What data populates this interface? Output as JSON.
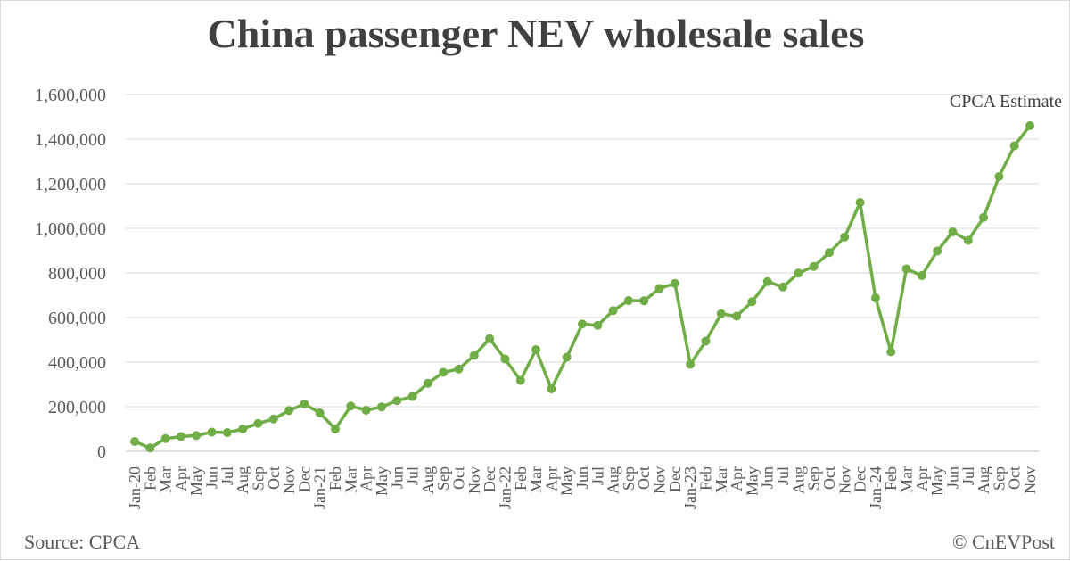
{
  "chart_data": {
    "type": "line",
    "title": "China passenger NEV wholesale sales",
    "xlabel": "",
    "ylabel": "",
    "ylim": [
      0,
      1600000
    ],
    "yticks": [
      0,
      200000,
      400000,
      600000,
      800000,
      1000000,
      1200000,
      1400000,
      1600000
    ],
    "ytick_labels": [
      "0",
      "200,000",
      "400,000",
      "600,000",
      "800,000",
      "1,000,000",
      "1,200,000",
      "1,400,000",
      "1,600,000"
    ],
    "grid": true,
    "line_color": "#70ad47",
    "categories": [
      "Jan-20",
      "Feb",
      "Mar",
      "Apr",
      "May",
      "Jun",
      "Jul",
      "Aug",
      "Sep",
      "Oct",
      "Nov",
      "Dec",
      "Jan-21",
      "Feb",
      "Mar",
      "Apr",
      "May",
      "Jun",
      "Jul",
      "Aug",
      "Sep",
      "Oct",
      "Nov",
      "Dec",
      "Jan-22",
      "Feb",
      "Mar",
      "Apr",
      "May",
      "Jun",
      "Jul",
      "Aug",
      "Sep",
      "Oct",
      "Nov",
      "Dec",
      "Jan-23",
      "Feb",
      "Mar",
      "Apr",
      "May",
      "Jun",
      "Jul",
      "Aug",
      "Sep",
      "Oct",
      "Nov",
      "Dec",
      "Jan-24",
      "Feb",
      "Mar",
      "Apr",
      "May",
      "Jun",
      "Jul",
      "Aug",
      "Sep",
      "Oct",
      "Nov"
    ],
    "series": [
      {
        "values": [
          44000,
          15000,
          57000,
          66000,
          71000,
          86000,
          84000,
          100000,
          125000,
          145000,
          183000,
          212000,
          172000,
          100000,
          203000,
          184000,
          199000,
          227000,
          246000,
          305000,
          354000,
          369000,
          430000,
          505000,
          414000,
          318000,
          456000,
          280000,
          422000,
          571000,
          565000,
          631000,
          676000,
          675000,
          730000,
          753000,
          390000,
          494000,
          617000,
          606000,
          671000,
          761000,
          737000,
          799000,
          829000,
          891000,
          961000,
          1116000,
          688000,
          446000,
          818000,
          788000,
          898000,
          984000,
          946000,
          1049000,
          1232000,
          1370000,
          1460000
        ]
      }
    ],
    "annotations": [
      {
        "text": "CPCA Estimate"
      }
    ]
  },
  "footer": {
    "source": "Source: CPCA",
    "copyright": "© CnEVPost"
  }
}
